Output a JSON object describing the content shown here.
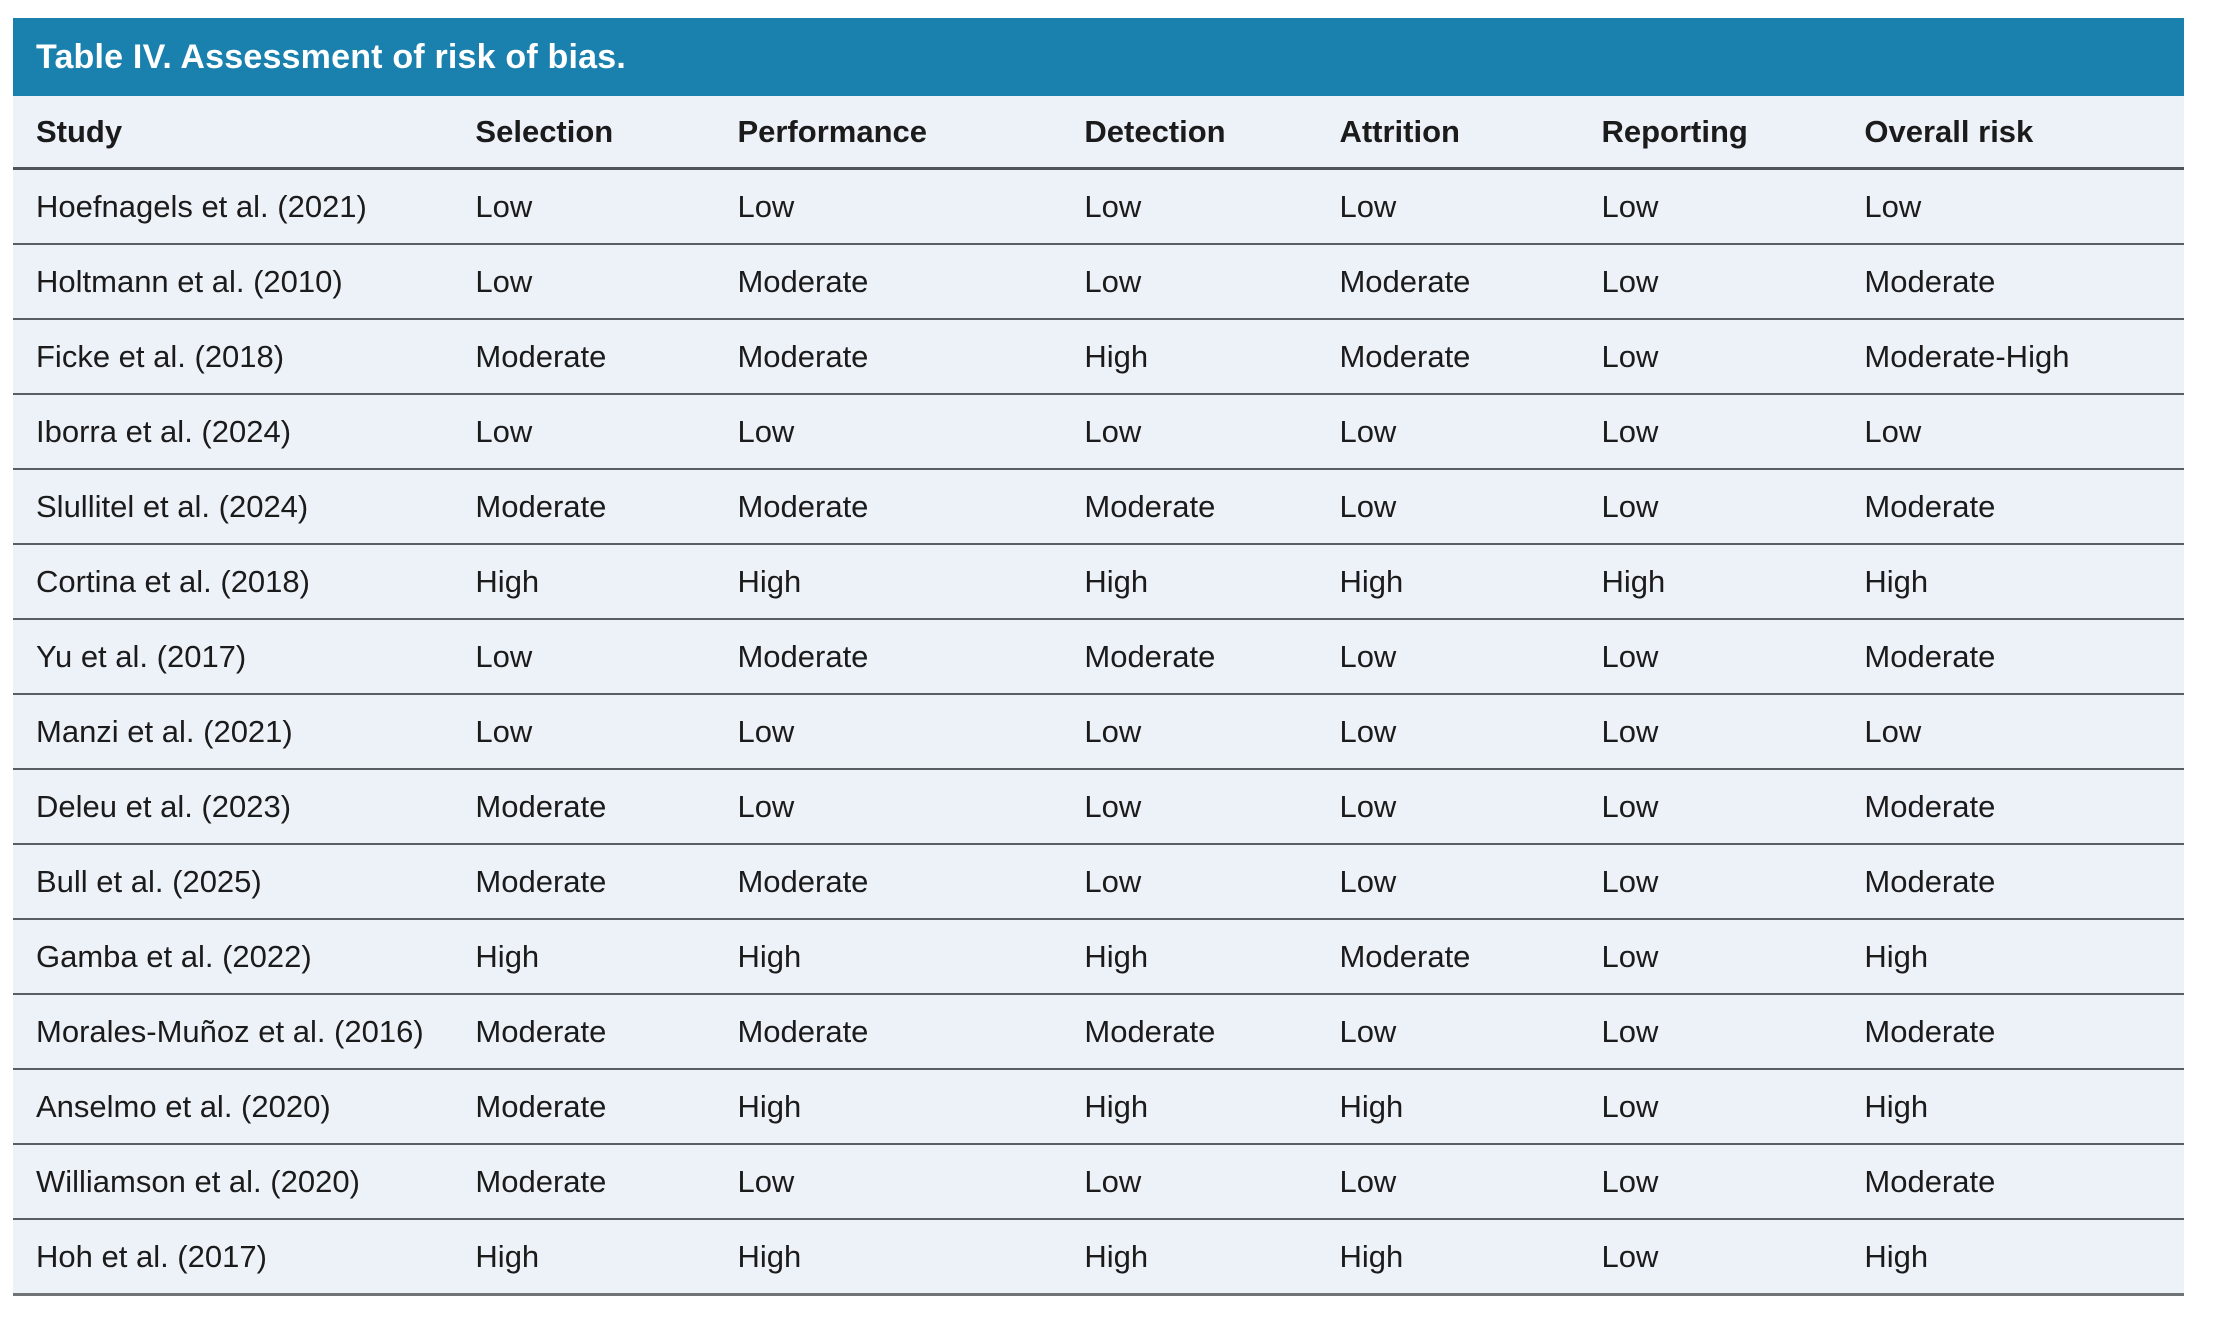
{
  "title": "Table IV. Assessment of risk of bias.",
  "colors": {
    "accent": "#1a81ae",
    "title_text": "#ffffff",
    "table_bg": "#edf1f8",
    "header_border": "#505459",
    "row_border": "#5a5e62",
    "bottom_border": "#717476",
    "text": "#1b1b1b"
  },
  "table": {
    "columns": [
      "Study",
      "Selection",
      "Performance",
      "Detection",
      "Attrition",
      "Reporting",
      "Overall risk"
    ],
    "column_keys": [
      "study",
      "selection",
      "performance",
      "detection",
      "attrition",
      "reporting",
      "overall_risk"
    ],
    "column_widths_pct": [
      21.3,
      12.07,
      15.98,
      11.75,
      12.07,
      12.11,
      14.72
    ],
    "rows": [
      {
        "study": "Hoefnagels et al. (2021)",
        "selection": "Low",
        "performance": "Low",
        "detection": "Low",
        "attrition": "Low",
        "reporting": "Low",
        "overall_risk": "Low"
      },
      {
        "study": "Holtmann et al. (2010)",
        "selection": "Low",
        "performance": "Moderate",
        "detection": "Low",
        "attrition": "Moderate",
        "reporting": "Low",
        "overall_risk": "Moderate"
      },
      {
        "study": "Ficke et al. (2018)",
        "selection": "Moderate",
        "performance": "Moderate",
        "detection": "High",
        "attrition": "Moderate",
        "reporting": "Low",
        "overall_risk": "Moderate-High"
      },
      {
        "study": "Iborra et al. (2024)",
        "selection": "Low",
        "performance": "Low",
        "detection": "Low",
        "attrition": "Low",
        "reporting": "Low",
        "overall_risk": "Low"
      },
      {
        "study": "Slullitel et al. (2024)",
        "selection": "Moderate",
        "performance": "Moderate",
        "detection": "Moderate",
        "attrition": "Low",
        "reporting": "Low",
        "overall_risk": "Moderate"
      },
      {
        "study": "Cortina et al. (2018)",
        "selection": "High",
        "performance": "High",
        "detection": "High",
        "attrition": "High",
        "reporting": "High",
        "overall_risk": "High"
      },
      {
        "study": "Yu et al. (2017)",
        "selection": "Low",
        "performance": "Moderate",
        "detection": "Moderate",
        "attrition": "Low",
        "reporting": "Low",
        "overall_risk": "Moderate"
      },
      {
        "study": "Manzi et al. (2021)",
        "selection": "Low",
        "performance": "Low",
        "detection": "Low",
        "attrition": "Low",
        "reporting": "Low",
        "overall_risk": "Low"
      },
      {
        "study": "Deleu et al. (2023)",
        "selection": "Moderate",
        "performance": "Low",
        "detection": "Low",
        "attrition": "Low",
        "reporting": "Low",
        "overall_risk": "Moderate"
      },
      {
        "study": "Bull et al. (2025)",
        "selection": "Moderate",
        "performance": "Moderate",
        "detection": "Low",
        "attrition": "Low",
        "reporting": "Low",
        "overall_risk": "Moderate"
      },
      {
        "study": "Gamba et al. (2022)",
        "selection": "High",
        "performance": "High",
        "detection": "High",
        "attrition": "Moderate",
        "reporting": "Low",
        "overall_risk": "High"
      },
      {
        "study": "Morales-Muñoz et al. (2016)",
        "selection": "Moderate",
        "performance": "Moderate",
        "detection": "Moderate",
        "attrition": "Low",
        "reporting": "Low",
        "overall_risk": "Moderate"
      },
      {
        "study": "Anselmo et al. (2020)",
        "selection": "Moderate",
        "performance": "High",
        "detection": "High",
        "attrition": "High",
        "reporting": "Low",
        "overall_risk": "High"
      },
      {
        "study": "Williamson et al. (2020)",
        "selection": "Moderate",
        "performance": "Low",
        "detection": "Low",
        "attrition": "Low",
        "reporting": "Low",
        "overall_risk": "Moderate"
      },
      {
        "study": "Hoh et al. (2017)",
        "selection": "High",
        "performance": "High",
        "detection": "High",
        "attrition": "High",
        "reporting": "Low",
        "overall_risk": "High"
      }
    ]
  }
}
